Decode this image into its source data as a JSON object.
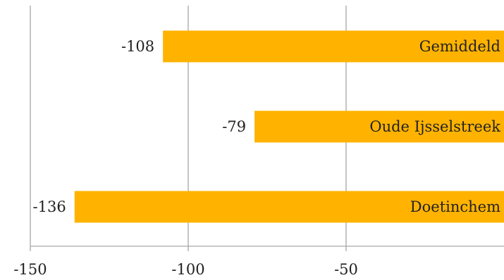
{
  "chart_data": {
    "type": "bar",
    "orientation": "horizontal",
    "categories": [
      "Gemiddeld",
      "Oude Ijsselstreek",
      "Doetinchem"
    ],
    "values": [
      -108,
      -79,
      -136
    ],
    "data_labels": [
      "-108",
      "-79",
      "-136"
    ],
    "xlim": [
      -150,
      0
    ],
    "xticks": [
      "-150",
      "-100",
      "-50"
    ],
    "grid": true,
    "bar_color": "#ffb300",
    "category_label_placement": "inside-bar-end",
    "legend": false
  }
}
